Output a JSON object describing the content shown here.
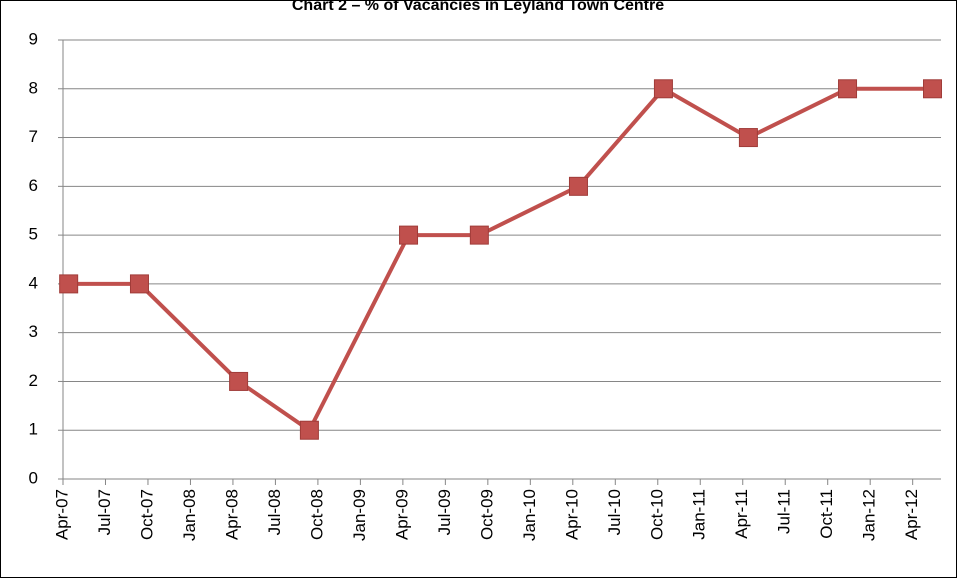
{
  "chart_data": {
    "type": "line",
    "title": "Chart 2 – % of Vacancies in Leyland Town Centre",
    "x": [
      "Apr-07",
      "Sep-07",
      "Apr-08",
      "Sep-08",
      "Apr-09",
      "Sep-09",
      "Apr-10",
      "Oct-10",
      "Apr-11",
      "Nov-11",
      "May-12"
    ],
    "series": [
      {
        "name": "% of Vacancies",
        "color": "#c0504d",
        "values": [
          4,
          4,
          2,
          1,
          5,
          5,
          6,
          8,
          7,
          8,
          8
        ]
      }
    ],
    "xlim": [
      "Apr-07",
      "Jun-12"
    ],
    "xticks": [
      "Apr-07",
      "Jul-07",
      "Oct-07",
      "Jan-08",
      "Apr-08",
      "Jul-08",
      "Oct-08",
      "Jan-09",
      "Apr-09",
      "Jul-09",
      "Oct-09",
      "Jan-10",
      "Apr-10",
      "Jul-10",
      "Oct-10",
      "Jan-11",
      "Apr-11",
      "Jul-11",
      "Oct-11",
      "Jan-12",
      "Apr-12"
    ],
    "ylim": [
      0,
      9
    ],
    "yticks": [
      0,
      1,
      2,
      3,
      4,
      5,
      6,
      7,
      8,
      9
    ],
    "grid": true
  }
}
